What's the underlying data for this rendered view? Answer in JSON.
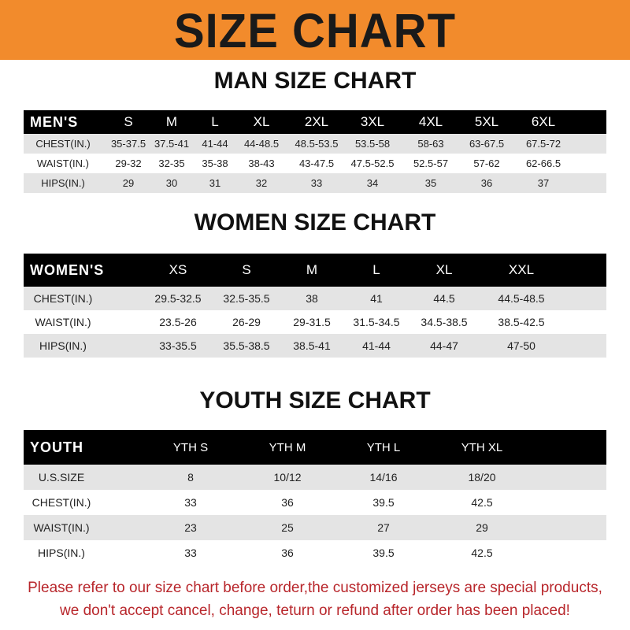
{
  "banner_title": "SIZE CHART",
  "colors": {
    "banner": "#f28b2c",
    "footer_text": "#b8262b",
    "header_row": "#000000",
    "stripe": "#e4e4e4"
  },
  "men": {
    "title": "MAN SIZE CHART",
    "header": [
      "MEN'S",
      "S",
      "M",
      "L",
      "XL",
      "2XL",
      "3XL",
      "4XL",
      "5XL",
      "6XL"
    ],
    "rows": [
      [
        "CHEST(IN.)",
        "35-37.5",
        "37.5-41",
        "41-44",
        "44-48.5",
        "48.5-53.5",
        "53.5-58",
        "58-63",
        "63-67.5",
        "67.5-72"
      ],
      [
        "WAIST(IN.)",
        "29-32",
        "32-35",
        "35-38",
        "38-43",
        "43-47.5",
        "47.5-52.5",
        "52.5-57",
        "57-62",
        "62-66.5"
      ],
      [
        "HIPS(IN.)",
        "29",
        "30",
        "31",
        "32",
        "33",
        "34",
        "35",
        "36",
        "37"
      ]
    ]
  },
  "women": {
    "title": "WOMEN SIZE CHART",
    "header": [
      "WOMEN'S",
      "XS",
      "S",
      "M",
      "L",
      "XL",
      "XXL"
    ],
    "rows": [
      [
        "CHEST(IN.)",
        "29.5-32.5",
        "32.5-35.5",
        "38",
        "41",
        "44.5",
        "44.5-48.5"
      ],
      [
        "WAIST(IN.)",
        "23.5-26",
        "26-29",
        "29-31.5",
        "31.5-34.5",
        "34.5-38.5",
        "38.5-42.5"
      ],
      [
        "HIPS(IN.)",
        "33-35.5",
        "35.5-38.5",
        "38.5-41",
        "41-44",
        "44-47",
        "47-50"
      ]
    ]
  },
  "youth": {
    "title": "YOUTH SIZE CHART",
    "header": [
      "YOUTH",
      "YTH S",
      "YTH M",
      "YTH L",
      "YTH XL"
    ],
    "rows": [
      [
        "U.S.SIZE",
        "8",
        "10/12",
        "14/16",
        "18/20"
      ],
      [
        "CHEST(IN.)",
        "33",
        "36",
        "39.5",
        "42.5"
      ],
      [
        "WAIST(IN.)",
        "23",
        "25",
        "27",
        "29"
      ],
      [
        "HIPS(IN.)",
        "33",
        "36",
        "39.5",
        "42.5"
      ]
    ]
  },
  "footer": [
    "Please refer to our size chart before order,the customized jerseys are special products,",
    "we don't accept cancel, change, teturn or refund after order has been placed!"
  ]
}
